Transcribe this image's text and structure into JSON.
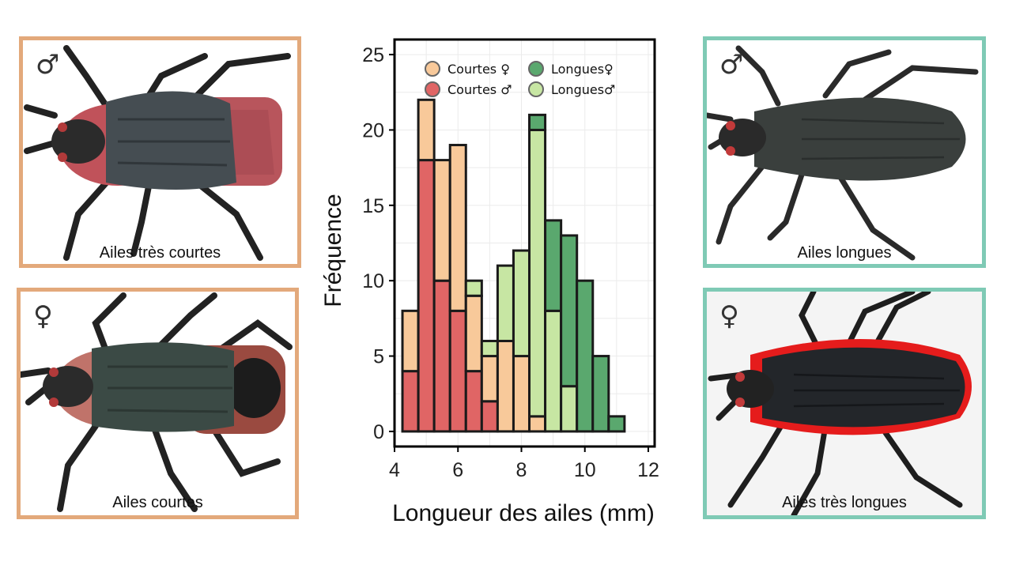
{
  "panels": [
    {
      "symbol": "♂",
      "caption": "Ailes très courtes",
      "frame_color": "#e3a97b"
    },
    {
      "symbol": "♀",
      "caption": "Ailes courtes",
      "frame_color": "#e3a97b"
    },
    {
      "symbol": "♂",
      "caption": "Ailes longues",
      "frame_color": "#7fcab5"
    },
    {
      "symbol": "♀",
      "caption": "Ailes très longues",
      "frame_color": "#7fcab5"
    }
  ],
  "chart_data": {
    "type": "bar",
    "stacked": true,
    "title": "",
    "xlabel": "Longueur des ailes (mm)",
    "ylabel": "Fréquence",
    "xlim": [
      4,
      12.2
    ],
    "ylim": [
      -1,
      26
    ],
    "xticks": [
      "4",
      "6",
      "8",
      "10",
      "12"
    ],
    "yticks": [
      "0",
      "5",
      "10",
      "15",
      "20",
      "25"
    ],
    "bin_width": 0.5,
    "x": [
      4.5,
      5.0,
      5.5,
      6.0,
      6.5,
      7.0,
      7.5,
      8.0,
      8.5,
      9.0,
      9.5,
      10.0,
      10.5,
      11.0
    ],
    "grid": true,
    "legend_position": "top",
    "series": [
      {
        "name": "Courtes ♂",
        "color": "#e06565",
        "values": [
          4,
          18,
          10,
          8,
          4,
          2,
          0,
          0,
          0,
          0,
          0,
          0,
          0,
          0
        ]
      },
      {
        "name": "Courtes ♀",
        "color": "#f8c99a",
        "values": [
          4,
          4,
          8,
          11,
          5,
          3,
          6,
          5,
          1,
          0,
          0,
          0,
          0,
          0
        ]
      },
      {
        "name": "Longues♂",
        "color": "#c7e6a3",
        "values": [
          0,
          0,
          0,
          0,
          1,
          1,
          5,
          7,
          19,
          8,
          3,
          0,
          0,
          0
        ]
      },
      {
        "name": "Longues♀",
        "color": "#5aa86e",
        "values": [
          0,
          0,
          0,
          0,
          0,
          0,
          0,
          0,
          1,
          6,
          10,
          10,
          5,
          1
        ]
      }
    ],
    "legend": [
      {
        "label": "Courtes ♀",
        "color": "#f8c99a"
      },
      {
        "label": "Longues♀",
        "color": "#5aa86e"
      },
      {
        "label": "Courtes ♂",
        "color": "#e06565"
      },
      {
        "label": "Longues♂",
        "color": "#c7e6a3"
      }
    ]
  }
}
